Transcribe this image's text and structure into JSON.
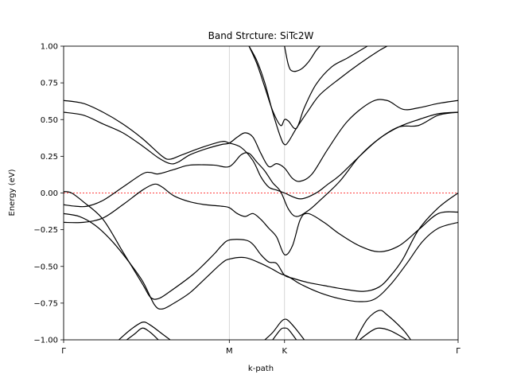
{
  "chart_data": {
    "type": "line",
    "title": "Band Strcture: SiTc2W",
    "xlabel": "k-path",
    "ylabel": "Energy (eV)",
    "ylim": [
      -1.0,
      1.0
    ],
    "xlim": [
      0.0,
      1.0
    ],
    "grid": "vertical lines at high-symmetry points",
    "fermi_level": {
      "value": 0.0,
      "style": "dashed",
      "color": "#ff0000"
    },
    "x_ticks": [
      {
        "label": "Γ",
        "position": 0.0
      },
      {
        "label": "M",
        "position": 0.42
      },
      {
        "label": "K",
        "position": 0.56
      },
      {
        "label": "Γ",
        "position": 1.0
      }
    ],
    "y_ticks": [
      "1.00",
      "0.75",
      "0.50",
      "0.25",
      "0.00",
      "−0.25",
      "−0.50",
      "−0.75",
      "−1.00"
    ],
    "y_tick_values": [
      1.0,
      0.75,
      0.5,
      0.25,
      0.0,
      -0.25,
      -0.5,
      -0.75,
      -1.0
    ],
    "line_color": "#000000",
    "bands": [
      {
        "points": [
          [
            0.0,
            0.01
          ],
          [
            0.02,
            0.0
          ],
          [
            0.05,
            -0.06
          ],
          [
            0.1,
            -0.18
          ],
          [
            0.15,
            -0.4
          ],
          [
            0.2,
            -0.62
          ],
          [
            0.22,
            -0.71
          ],
          [
            0.24,
            -0.72
          ],
          [
            0.27,
            -0.67
          ],
          [
            0.33,
            -0.55
          ],
          [
            0.38,
            -0.42
          ],
          [
            0.4,
            -0.36
          ],
          [
            0.42,
            -0.32
          ],
          [
            0.46,
            -0.32
          ],
          [
            0.48,
            -0.35
          ],
          [
            0.5,
            -0.42
          ],
          [
            0.52,
            -0.47
          ],
          [
            0.54,
            -0.48
          ],
          [
            0.56,
            -0.56
          ],
          [
            0.58,
            -0.58
          ],
          [
            0.62,
            -0.61
          ],
          [
            0.66,
            -0.63
          ],
          [
            0.7,
            -0.65
          ],
          [
            0.76,
            -0.67
          ],
          [
            0.8,
            -0.64
          ],
          [
            0.83,
            -0.56
          ],
          [
            0.86,
            -0.45
          ],
          [
            0.9,
            -0.25
          ],
          [
            0.95,
            -0.1
          ],
          [
            1.0,
            0.0
          ]
        ]
      },
      {
        "points": [
          [
            0.0,
            -0.08
          ],
          [
            0.03,
            -0.09
          ],
          [
            0.06,
            -0.09
          ],
          [
            0.1,
            -0.05
          ],
          [
            0.15,
            0.04
          ],
          [
            0.2,
            0.13
          ],
          [
            0.22,
            0.14
          ],
          [
            0.24,
            0.13
          ],
          [
            0.28,
            0.16
          ],
          [
            0.32,
            0.19
          ],
          [
            0.38,
            0.19
          ],
          [
            0.42,
            0.18
          ],
          [
            0.45,
            0.26
          ],
          [
            0.47,
            0.27
          ],
          [
            0.49,
            0.21
          ],
          [
            0.51,
            0.15
          ],
          [
            0.53,
            0.07
          ],
          [
            0.55,
            0.01
          ],
          [
            0.57,
            -0.11
          ],
          [
            0.59,
            -0.16
          ],
          [
            0.62,
            -0.12
          ],
          [
            0.65,
            -0.05
          ],
          [
            0.7,
            0.08
          ],
          [
            0.75,
            0.25
          ],
          [
            0.8,
            0.37
          ],
          [
            0.85,
            0.45
          ],
          [
            0.9,
            0.46
          ],
          [
            0.95,
            0.53
          ],
          [
            1.0,
            0.55
          ]
        ]
      },
      {
        "points": [
          [
            0.0,
            0.55
          ],
          [
            0.05,
            0.53
          ],
          [
            0.1,
            0.47
          ],
          [
            0.15,
            0.41
          ],
          [
            0.2,
            0.32
          ],
          [
            0.24,
            0.24
          ],
          [
            0.27,
            0.2
          ],
          [
            0.29,
            0.21
          ],
          [
            0.32,
            0.26
          ],
          [
            0.36,
            0.3
          ],
          [
            0.4,
            0.33
          ],
          [
            0.42,
            0.34
          ],
          [
            0.44,
            0.38
          ],
          [
            0.46,
            0.41
          ],
          [
            0.48,
            0.38
          ],
          [
            0.5,
            0.27
          ],
          [
            0.52,
            0.18
          ],
          [
            0.54,
            0.2
          ],
          [
            0.56,
            0.17
          ],
          [
            0.58,
            0.1
          ],
          [
            0.6,
            0.08
          ],
          [
            0.63,
            0.13
          ],
          [
            0.67,
            0.3
          ],
          [
            0.72,
            0.49
          ],
          [
            0.78,
            0.62
          ],
          [
            0.82,
            0.63
          ],
          [
            0.86,
            0.57
          ],
          [
            0.9,
            0.58
          ],
          [
            0.95,
            0.61
          ],
          [
            1.0,
            0.63
          ]
        ]
      },
      {
        "points": [
          [
            0.0,
            0.63
          ],
          [
            0.05,
            0.61
          ],
          [
            0.1,
            0.55
          ],
          [
            0.15,
            0.47
          ],
          [
            0.2,
            0.37
          ],
          [
            0.25,
            0.25
          ],
          [
            0.27,
            0.23
          ],
          [
            0.3,
            0.26
          ],
          [
            0.35,
            0.31
          ],
          [
            0.4,
            0.35
          ],
          [
            0.42,
            0.34
          ],
          [
            0.45,
            0.31
          ],
          [
            0.48,
            0.22
          ],
          [
            0.5,
            0.11
          ],
          [
            0.52,
            0.04
          ],
          [
            0.54,
            0.02
          ],
          [
            0.56,
            0.0
          ],
          [
            0.6,
            -0.04
          ],
          [
            0.64,
            0.0
          ],
          [
            0.67,
            0.06
          ],
          [
            0.7,
            0.12
          ],
          [
            0.75,
            0.25
          ],
          [
            0.8,
            0.37
          ],
          [
            0.85,
            0.45
          ],
          [
            0.9,
            0.5
          ],
          [
            0.95,
            0.54
          ],
          [
            1.0,
            0.55
          ]
        ]
      },
      {
        "points": [
          [
            0.0,
            -0.14
          ],
          [
            0.04,
            -0.16
          ],
          [
            0.08,
            -0.22
          ],
          [
            0.12,
            -0.32
          ],
          [
            0.16,
            -0.45
          ],
          [
            0.2,
            -0.6
          ],
          [
            0.23,
            -0.76
          ],
          [
            0.25,
            -0.79
          ],
          [
            0.28,
            -0.75
          ],
          [
            0.32,
            -0.68
          ],
          [
            0.36,
            -0.58
          ],
          [
            0.4,
            -0.48
          ],
          [
            0.42,
            -0.45
          ],
          [
            0.46,
            -0.44
          ],
          [
            0.5,
            -0.48
          ],
          [
            0.53,
            -0.52
          ],
          [
            0.55,
            -0.55
          ],
          [
            0.57,
            -0.57
          ],
          [
            0.6,
            -0.62
          ],
          [
            0.65,
            -0.68
          ],
          [
            0.7,
            -0.72
          ],
          [
            0.75,
            -0.74
          ],
          [
            0.79,
            -0.72
          ],
          [
            0.83,
            -0.62
          ],
          [
            0.87,
            -0.48
          ],
          [
            0.91,
            -0.33
          ],
          [
            0.95,
            -0.24
          ],
          [
            1.0,
            -0.2
          ]
        ]
      },
      {
        "points": [
          [
            0.0,
            -0.2
          ],
          [
            0.05,
            -0.2
          ],
          [
            0.1,
            -0.17
          ],
          [
            0.15,
            -0.08
          ],
          [
            0.2,
            0.02
          ],
          [
            0.23,
            0.06
          ],
          [
            0.25,
            0.04
          ],
          [
            0.28,
            -0.02
          ],
          [
            0.32,
            -0.06
          ],
          [
            0.36,
            -0.08
          ],
          [
            0.4,
            -0.09
          ],
          [
            0.42,
            -0.1
          ],
          [
            0.44,
            -0.14
          ],
          [
            0.46,
            -0.16
          ],
          [
            0.48,
            -0.14
          ],
          [
            0.5,
            -0.18
          ],
          [
            0.52,
            -0.24
          ],
          [
            0.54,
            -0.3
          ],
          [
            0.56,
            -0.42
          ],
          [
            0.58,
            -0.36
          ],
          [
            0.6,
            -0.18
          ],
          [
            0.62,
            -0.14
          ],
          [
            0.66,
            -0.2
          ],
          [
            0.7,
            -0.28
          ],
          [
            0.75,
            -0.36
          ],
          [
            0.8,
            -0.4
          ],
          [
            0.85,
            -0.36
          ],
          [
            0.9,
            -0.25
          ],
          [
            0.95,
            -0.14
          ],
          [
            1.0,
            -0.13
          ]
        ]
      },
      {
        "points": [
          [
            0.47,
            1.0
          ],
          [
            0.49,
            0.88
          ],
          [
            0.51,
            0.72
          ],
          [
            0.53,
            0.56
          ],
          [
            0.55,
            0.46
          ],
          [
            0.56,
            0.5
          ],
          [
            0.57,
            0.49
          ],
          [
            0.59,
            0.44
          ],
          [
            0.61,
            0.58
          ],
          [
            0.64,
            0.74
          ],
          [
            0.68,
            0.86
          ],
          [
            0.72,
            0.92
          ],
          [
            0.77,
            1.0
          ]
        ]
      },
      {
        "points": [
          [
            0.47,
            1.0
          ],
          [
            0.49,
            0.9
          ],
          [
            0.51,
            0.75
          ],
          [
            0.53,
            0.55
          ],
          [
            0.55,
            0.38
          ],
          [
            0.56,
            0.33
          ],
          [
            0.57,
            0.35
          ],
          [
            0.59,
            0.44
          ],
          [
            0.62,
            0.56
          ],
          [
            0.65,
            0.67
          ],
          [
            0.7,
            0.78
          ],
          [
            0.75,
            0.88
          ],
          [
            0.8,
            0.97
          ],
          [
            0.82,
            1.0
          ]
        ]
      },
      {
        "points": [
          [
            0.56,
            1.0
          ],
          [
            0.57,
            0.87
          ],
          [
            0.58,
            0.83
          ],
          [
            0.6,
            0.84
          ],
          [
            0.62,
            0.89
          ],
          [
            0.64,
            0.97
          ],
          [
            0.65,
            1.0
          ]
        ]
      },
      {
        "points": [
          [
            0.14,
            -1.0
          ],
          [
            0.17,
            -0.93
          ],
          [
            0.2,
            -0.88
          ],
          [
            0.22,
            -0.9
          ],
          [
            0.25,
            -0.96
          ],
          [
            0.27,
            -1.0
          ]
        ]
      },
      {
        "points": [
          [
            0.16,
            -1.0
          ],
          [
            0.18,
            -0.96
          ],
          [
            0.2,
            -0.92
          ],
          [
            0.22,
            -0.95
          ],
          [
            0.24,
            -1.0
          ]
        ]
      },
      {
        "points": [
          [
            0.51,
            -1.0
          ],
          [
            0.53,
            -0.95
          ],
          [
            0.55,
            -0.88
          ],
          [
            0.56,
            -0.86
          ],
          [
            0.57,
            -0.87
          ],
          [
            0.59,
            -0.93
          ],
          [
            0.61,
            -1.0
          ]
        ]
      },
      {
        "points": [
          [
            0.53,
            -1.0
          ],
          [
            0.55,
            -0.93
          ],
          [
            0.56,
            -0.92
          ],
          [
            0.57,
            -0.93
          ],
          [
            0.59,
            -1.0
          ]
        ]
      },
      {
        "points": [
          [
            0.74,
            -1.0
          ],
          [
            0.77,
            -0.86
          ],
          [
            0.8,
            -0.8
          ],
          [
            0.82,
            -0.83
          ],
          [
            0.86,
            -0.93
          ],
          [
            0.88,
            -1.0
          ]
        ]
      },
      {
        "points": [
          [
            0.75,
            -1.0
          ],
          [
            0.78,
            -0.94
          ],
          [
            0.8,
            -0.92
          ],
          [
            0.83,
            -0.94
          ],
          [
            0.87,
            -1.0
          ]
        ]
      }
    ]
  }
}
